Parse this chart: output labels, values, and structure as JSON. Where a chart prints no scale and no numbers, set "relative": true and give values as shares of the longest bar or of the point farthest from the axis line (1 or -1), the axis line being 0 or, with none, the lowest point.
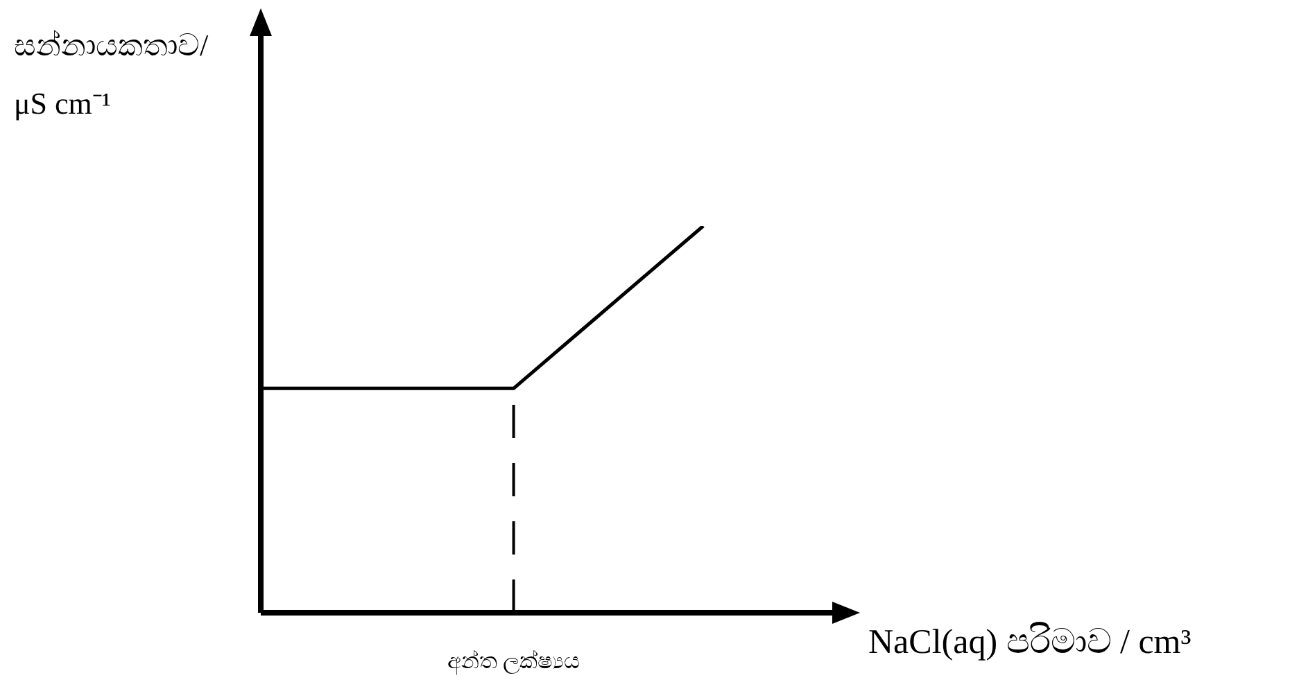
{
  "chart_data": {
    "type": "line",
    "relative": true,
    "xlabel": "NaCl(aq) පරිමාව / cm³",
    "ylabel": "සන්නායකතාව/ μS cm⁻¹",
    "categories": [
      null,
      null,
      null,
      null,
      null,
      null,
      null,
      null
    ],
    "series": [
      {
        "color": "#000000",
        "values": [
          0.58,
          0.58,
          0.58,
          0.58,
          0.58,
          0.72,
          0.86,
          1
        ]
      }
    ],
    "annotations": [
      "අන්ත ලක්ෂ්‍යය"
    ],
    "marker": "none"
  }
}
